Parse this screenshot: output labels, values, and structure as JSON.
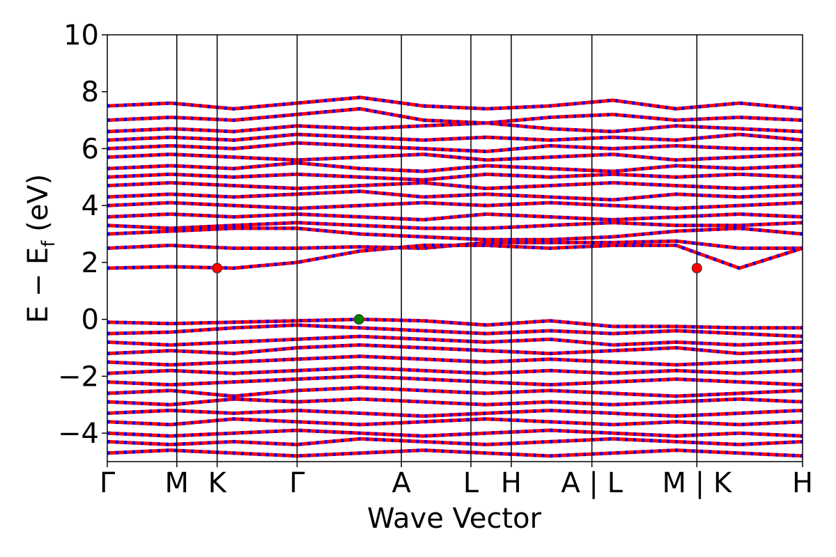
{
  "chart_data": {
    "type": "line",
    "xlabel": "Wave Vector",
    "ylabel_main": "E − E",
    "ylabel_sub": "f",
    "ylabel_unit": " (eV)",
    "ylim": [
      -5,
      10
    ],
    "yticks": [
      -4,
      -2,
      0,
      2,
      4,
      6,
      8,
      10
    ],
    "ytick_labels": [
      "−4",
      "−2",
      "0",
      "2",
      "4",
      "6",
      "8",
      "10"
    ],
    "xlim": [
      0,
      10
    ],
    "kpoints": [
      {
        "label": "Γ",
        "x": 0.0
      },
      {
        "label": "M",
        "x": 1.0
      },
      {
        "label": "K",
        "x": 1.58
      },
      {
        "label": "Γ",
        "x": 2.73
      },
      {
        "label": "A",
        "x": 4.23
      },
      {
        "label": "L",
        "x": 5.23
      },
      {
        "label": "H",
        "x": 5.81
      },
      {
        "label": "A | L",
        "x": 6.97
      },
      {
        "label": "M | K",
        "x": 8.48
      },
      {
        "label": "H",
        "x": 10.0
      }
    ],
    "line_colors": {
      "spin_up": "#ff0000",
      "spin_down": "#0000ff"
    },
    "conduction_bands": [
      [
        2.5,
        2.6,
        2.5,
        2.5,
        2.55,
        2.5,
        2.7,
        2.7,
        2.7,
        2.75,
        2.5,
        2.5
      ],
      [
        1.8,
        1.85,
        1.8,
        2.0,
        2.4,
        2.6,
        2.6,
        2.5,
        2.6,
        2.6,
        1.8,
        2.5
      ],
      [
        3.0,
        3.1,
        3.2,
        3.2,
        3.0,
        2.9,
        2.8,
        2.8,
        2.9,
        3.1,
        3.2,
        3.0
      ],
      [
        3.3,
        3.2,
        3.3,
        3.4,
        3.3,
        3.2,
        3.2,
        3.3,
        3.4,
        3.3,
        3.3,
        3.4
      ],
      [
        3.6,
        3.7,
        3.6,
        3.7,
        3.6,
        3.5,
        3.7,
        3.6,
        3.5,
        3.6,
        3.7,
        3.6
      ],
      [
        4.0,
        4.1,
        4.0,
        3.9,
        4.0,
        4.1,
        4.0,
        4.1,
        4.0,
        3.9,
        4.0,
        4.1
      ],
      [
        4.3,
        4.4,
        4.3,
        4.4,
        4.5,
        4.3,
        4.4,
        4.3,
        4.2,
        4.4,
        4.3,
        4.4
      ],
      [
        4.7,
        4.8,
        4.7,
        4.6,
        4.7,
        4.8,
        4.6,
        4.7,
        4.8,
        4.7,
        4.6,
        4.7
      ],
      [
        5.0,
        5.1,
        5.0,
        5.1,
        5.0,
        4.9,
        5.1,
        5.0,
        5.1,
        5.0,
        5.1,
        5.0
      ],
      [
        5.3,
        5.4,
        5.3,
        5.5,
        5.3,
        5.2,
        5.4,
        5.3,
        5.2,
        5.4,
        5.3,
        5.4
      ],
      [
        5.7,
        5.8,
        5.7,
        5.6,
        5.7,
        5.8,
        5.6,
        5.7,
        5.8,
        5.6,
        5.7,
        5.8
      ],
      [
        6.0,
        6.1,
        6.0,
        6.2,
        6.1,
        6.0,
        5.9,
        6.1,
        6.0,
        6.1,
        6.0,
        6.0
      ],
      [
        6.3,
        6.4,
        6.3,
        6.5,
        6.4,
        6.3,
        6.4,
        6.3,
        6.4,
        6.3,
        6.5,
        6.3
      ],
      [
        6.6,
        6.7,
        6.6,
        6.8,
        6.7,
        6.8,
        6.9,
        6.7,
        6.6,
        6.8,
        6.7,
        6.6
      ],
      [
        7.0,
        7.1,
        7.0,
        7.2,
        7.4,
        7.0,
        6.9,
        7.1,
        7.2,
        7.0,
        7.1,
        7.0
      ],
      [
        7.5,
        7.6,
        7.4,
        7.6,
        7.8,
        7.5,
        7.4,
        7.5,
        7.7,
        7.4,
        7.6,
        7.4
      ]
    ],
    "valence_bands": [
      [
        -0.1,
        -0.15,
        -0.1,
        -0.05,
        0.0,
        -0.05,
        -0.2,
        -0.05,
        -0.25,
        -0.25,
        -0.3,
        -0.3
      ],
      [
        -0.5,
        -0.45,
        -0.3,
        -0.2,
        -0.3,
        -0.4,
        -0.5,
        -0.4,
        -0.5,
        -0.4,
        -0.5,
        -0.6
      ],
      [
        -0.8,
        -0.9,
        -0.8,
        -0.7,
        -0.6,
        -0.7,
        -0.8,
        -0.7,
        -0.9,
        -0.8,
        -0.9,
        -0.8
      ],
      [
        -1.2,
        -1.1,
        -1.2,
        -1.0,
        -0.9,
        -1.0,
        -1.1,
        -1.2,
        -1.1,
        -1.0,
        -1.2,
        -1.1
      ],
      [
        -1.5,
        -1.6,
        -1.5,
        -1.4,
        -1.3,
        -1.4,
        -1.5,
        -1.4,
        -1.5,
        -1.6,
        -1.5,
        -1.4
      ],
      [
        -1.9,
        -1.8,
        -1.9,
        -1.8,
        -1.7,
        -1.8,
        -1.9,
        -1.8,
        -1.9,
        -1.8,
        -1.9,
        -1.8
      ],
      [
        -2.2,
        -2.3,
        -2.2,
        -2.1,
        -2.0,
        -2.1,
        -2.2,
        -2.3,
        -2.2,
        -2.1,
        -2.2,
        -2.3
      ],
      [
        -2.6,
        -2.5,
        -2.7,
        -2.5,
        -2.4,
        -2.5,
        -2.6,
        -2.5,
        -2.6,
        -2.7,
        -2.6,
        -2.5
      ],
      [
        -2.9,
        -3.0,
        -2.8,
        -2.9,
        -2.8,
        -2.9,
        -3.0,
        -2.9,
        -3.0,
        -2.9,
        -2.8,
        -2.9
      ],
      [
        -3.3,
        -3.2,
        -3.3,
        -3.2,
        -3.3,
        -3.4,
        -3.3,
        -3.2,
        -3.3,
        -3.4,
        -3.3,
        -3.2
      ],
      [
        -3.6,
        -3.7,
        -3.5,
        -3.6,
        -3.7,
        -3.6,
        -3.5,
        -3.6,
        -3.7,
        -3.6,
        -3.7,
        -3.6
      ],
      [
        -4.0,
        -4.1,
        -4.0,
        -3.9,
        -4.0,
        -4.1,
        -4.0,
        -3.9,
        -4.0,
        -4.1,
        -4.0,
        -4.1
      ],
      [
        -4.3,
        -4.4,
        -4.3,
        -4.4,
        -4.2,
        -4.3,
        -4.4,
        -4.3,
        -4.2,
        -4.3,
        -4.4,
        -4.3
      ],
      [
        -4.7,
        -4.6,
        -4.7,
        -4.8,
        -4.7,
        -4.6,
        -4.7,
        -4.8,
        -4.7,
        -4.6,
        -4.7,
        -4.8
      ]
    ],
    "band_extrema": [
      {
        "name": "CBM",
        "x": 1.58,
        "y": 1.8,
        "color": "#ff0000"
      },
      {
        "name": "CBM",
        "x": 8.48,
        "y": 1.8,
        "color": "#ff0000"
      },
      {
        "name": "VBM",
        "x": 3.62,
        "y": 0.0,
        "color": "#008000"
      }
    ]
  }
}
